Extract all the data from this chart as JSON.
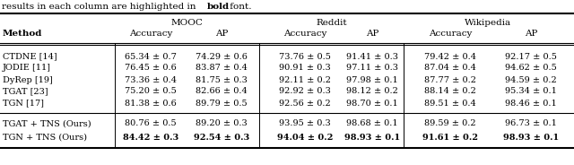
{
  "caption_normal": "results in each column are highlighted in ",
  "caption_bold": "bold",
  "caption_end": " font.",
  "col_labels_top": [
    "MOOC",
    "Reddit",
    "Wikipedia"
  ],
  "col_labels_sub": [
    "Accuracy",
    "AP",
    "Accuracy",
    "AP",
    "Accuracy",
    "AP"
  ],
  "method_label": "Method",
  "rows": [
    [
      "CTDNE [14]",
      "65.34 ± 0.7",
      "74.29 ± 0.6",
      "73.76 ± 0.5",
      "91.41 ± 0.3",
      "79.42 ± 0.4",
      "92.17 ± 0.5"
    ],
    [
      "JODIE [11]",
      "76.45 ± 0.6",
      "83.87 ± 0.4",
      "90.91 ± 0.3",
      "97.11 ± 0.3",
      "87.04 ± 0.4",
      "94.62 ± 0.5"
    ],
    [
      "DyRep [19]",
      "73.36 ± 0.4",
      "81.75 ± 0.3",
      "92.11 ± 0.2",
      "97.98 ± 0.1",
      "87.77 ± 0.2",
      "94.59 ± 0.2"
    ],
    [
      "TGAT [23]",
      "75.20 ± 0.5",
      "82.66 ± 0.4",
      "92.92 ± 0.3",
      "98.12 ± 0.2",
      "88.14 ± 0.2",
      "95.34 ± 0.1"
    ],
    [
      "TGN [17]",
      "81.38 ± 0.6",
      "89.79 ± 0.5",
      "92.56 ± 0.2",
      "98.70 ± 0.1",
      "89.51 ± 0.4",
      "98.46 ± 0.1"
    ]
  ],
  "rows_ours": [
    [
      "TGAT + TNS (Ours)",
      "80.76 ± 0.5",
      "89.20 ± 0.3",
      "93.95 ± 0.3",
      "98.68 ± 0.1",
      "89.59 ± 0.2",
      "96.73 ± 0.1"
    ],
    [
      "TGN + TNS (Ours)",
      "84.42 ± 0.3",
      "92.54 ± 0.3",
      "94.04 ± 0.2",
      "98.93 ± 0.1",
      "91.61 ± 0.2",
      "98.93 ± 0.1"
    ]
  ],
  "bold_ours": [
    [
      false,
      false,
      false,
      false,
      false,
      false
    ],
    [
      true,
      true,
      true,
      true,
      true,
      true
    ]
  ],
  "fontsize": 7.5,
  "fontsize_data": 7.0
}
